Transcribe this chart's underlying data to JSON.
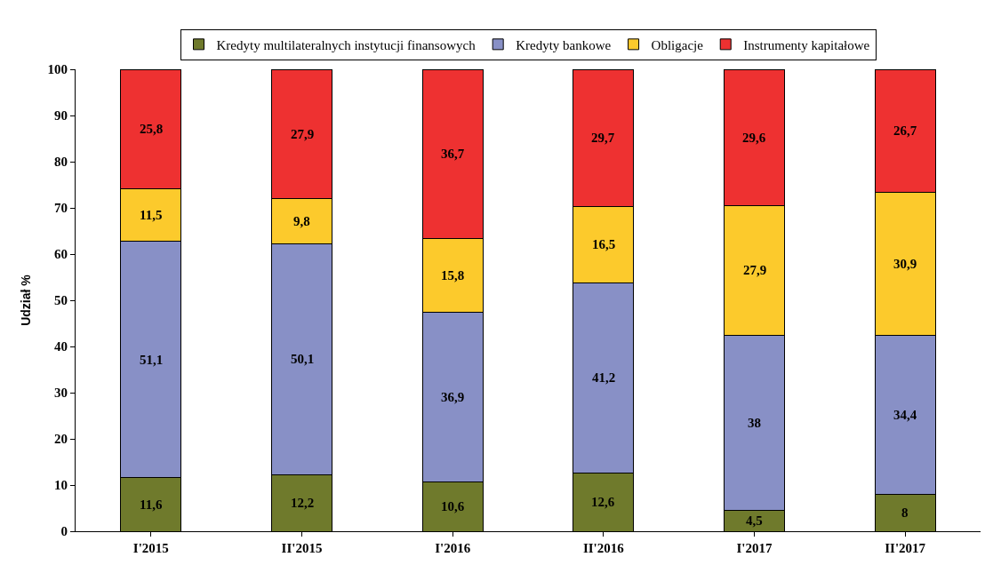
{
  "chart_data": {
    "type": "bar",
    "stacked": true,
    "ylabel": "Udział %",
    "categories": [
      "I'2015",
      "II'2015",
      "I'2016",
      "II'2016",
      "I'2017",
      "II'2017"
    ],
    "ylim": [
      0,
      100
    ],
    "yticks": [
      0,
      10,
      20,
      30,
      40,
      50,
      60,
      70,
      80,
      90,
      100
    ],
    "legend": "top",
    "series": [
      {
        "name": "Kredyty multilateralnych instytucji finansowych",
        "color": "#6f7a2c",
        "values": [
          11.6,
          12.2,
          10.6,
          12.6,
          4.5,
          8
        ],
        "value_labels": [
          "11,6",
          "12,2",
          "10,6",
          "12,6",
          "4,5",
          "8"
        ]
      },
      {
        "name": "Kredyty bankowe",
        "color": "#8890c6",
        "values": [
          51.1,
          50.1,
          36.9,
          41.2,
          38,
          34.4
        ],
        "value_labels": [
          "51,1",
          "50,1",
          "36,9",
          "41,2",
          "38",
          "34,4"
        ]
      },
      {
        "name": "Obligacje",
        "color": "#fcca2c",
        "values": [
          11.5,
          9.8,
          15.8,
          16.5,
          27.9,
          30.9
        ],
        "value_labels": [
          "11,5",
          "9,8",
          "15,8",
          "16,5",
          "27,9",
          "30,9"
        ]
      },
      {
        "name": "Instrumenty kapitałowe",
        "color": "#ee3131",
        "values": [
          25.8,
          27.9,
          36.7,
          29.7,
          29.6,
          26.7
        ],
        "value_labels": [
          "25,8",
          "27,9",
          "36,7",
          "29,7",
          "29,6",
          "26,7"
        ]
      }
    ]
  }
}
